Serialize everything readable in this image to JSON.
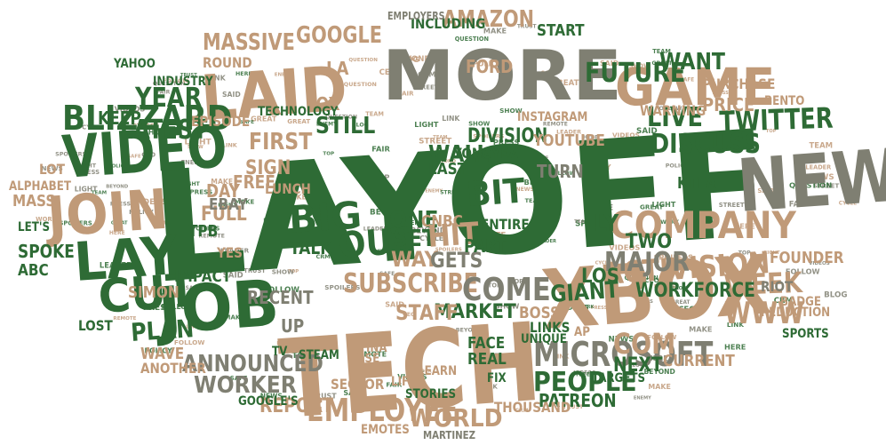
{
  "colors": {
    "green": "#2e6b35",
    "tan": "#c09a78",
    "gray": "#7f7f72",
    "lightgreen": "#5c8f5a"
  },
  "words": [
    {
      "id": "layoff",
      "text": "LAYOFF",
      "color": "green"
    },
    {
      "id": "tech",
      "text": "TECH",
      "color": "tan"
    },
    {
      "id": "more",
      "text": "MORE",
      "color": "gray"
    },
    {
      "id": "xbox",
      "text": "XBOX",
      "color": "tan"
    },
    {
      "id": "laid",
      "text": "LAID",
      "color": "tan"
    },
    {
      "id": "job",
      "text": "JOB",
      "color": "green"
    },
    {
      "id": "game",
      "text": "GAME",
      "color": "tan"
    },
    {
      "id": "new",
      "text": "NEW",
      "color": "gray"
    },
    {
      "id": "video",
      "text": "VIDEO",
      "color": "green"
    },
    {
      "id": "join",
      "text": "JOIN",
      "color": "tan"
    },
    {
      "id": "lay",
      "text": "LAY",
      "color": "green"
    },
    {
      "id": "cut",
      "text": "CUT",
      "color": "green"
    },
    {
      "id": "company",
      "text": "COMPANY",
      "color": "tan"
    },
    {
      "id": "microsoft",
      "text": "MICROSOFT",
      "color": "gray"
    },
    {
      "id": "blizzard",
      "text": "BLIZZARD",
      "color": "green"
    },
    {
      "id": "big",
      "text": "BIG",
      "color": "green"
    },
    {
      "id": "activision",
      "text": "ACTIVISION",
      "color": "tan"
    },
    {
      "id": "employee",
      "text": "EMPLOYEE",
      "color": "tan"
    },
    {
      "id": "subscribe",
      "text": "SUBSCRIBE",
      "color": "tan"
    },
    {
      "id": "announced",
      "text": "ANNOUNCED",
      "color": "gray"
    },
    {
      "id": "worker",
      "text": "WORKER",
      "color": "gray"
    },
    {
      "id": "future",
      "text": "FUTURE",
      "color": "green"
    },
    {
      "id": "twitter",
      "text": "TWITTER",
      "color": "green"
    },
    {
      "id": "discuss",
      "text": "DISCUSS",
      "color": "green"
    },
    {
      "id": "google",
      "text": "GOOGLE",
      "color": "tan"
    },
    {
      "id": "latest",
      "text": "LATEST",
      "color": "green"
    },
    {
      "id": "massive",
      "text": "MASSIVE",
      "color": "tan"
    },
    {
      "id": "amazon",
      "text": "AMAZON",
      "color": "tan"
    },
    {
      "id": "www",
      "text": "WWW",
      "color": "tan"
    },
    {
      "id": "week",
      "text": "WEEK",
      "color": "tan"
    },
    {
      "id": "people",
      "text": "PEOPLE",
      "color": "green"
    },
    {
      "id": "world",
      "text": "WORLD",
      "color": "tan"
    },
    {
      "id": "come",
      "text": "COME",
      "color": "gray"
    },
    {
      "id": "out",
      "text": "OUT",
      "color": "green"
    },
    {
      "id": "bit",
      "text": "BIT",
      "color": "green"
    },
    {
      "id": "major",
      "text": "MAJOR",
      "color": "gray"
    },
    {
      "id": "live",
      "text": "LIVE",
      "color": "green"
    },
    {
      "id": "year",
      "text": "YEAR",
      "color": "green"
    },
    {
      "id": "keep",
      "text": "KEEP",
      "color": "green"
    },
    {
      "id": "still",
      "text": "STILL",
      "color": "green"
    },
    {
      "id": "fox",
      "text": "FOX",
      "color": "tan"
    },
    {
      "id": "first",
      "text": "FIRST",
      "color": "tan"
    },
    {
      "id": "plan",
      "text": "PLAN",
      "color": "green"
    },
    {
      "id": "set",
      "text": "SET",
      "color": "green"
    },
    {
      "id": "one",
      "text": "ONE",
      "color": "green"
    },
    {
      "id": "way",
      "text": "WAY",
      "color": "tan"
    },
    {
      "id": "wall",
      "text": "WALL",
      "color": "green"
    },
    {
      "id": "last",
      "text": "LAST",
      "color": "green"
    },
    {
      "id": "hit",
      "text": "HIT",
      "color": "tan"
    },
    {
      "id": "gets",
      "text": "GETS",
      "color": "gray"
    },
    {
      "id": "market",
      "text": "MARKET",
      "color": "green"
    },
    {
      "id": "staff",
      "text": "STAFF",
      "color": "tan"
    },
    {
      "id": "giant",
      "text": "GIANT",
      "color": "green"
    },
    {
      "id": "com",
      "text": "COM",
      "color": "tan"
    },
    {
      "id": "two",
      "text": "TWO",
      "color": "green"
    },
    {
      "id": "los",
      "text": "LOS",
      "color": "green"
    },
    {
      "id": "ly",
      "text": "LY",
      "color": "green"
    },
    {
      "id": "workforce",
      "text": "WORKFORCE",
      "color": "green"
    },
    {
      "id": "report",
      "text": "REPORT",
      "color": "tan"
    },
    {
      "id": "patreon",
      "text": "PATREON",
      "color": "green"
    },
    {
      "id": "recent",
      "text": "RECENT",
      "color": "gray"
    },
    {
      "id": "sign",
      "text": "SIGN",
      "color": "tan"
    },
    {
      "id": "free",
      "text": "FREE",
      "color": "tan"
    },
    {
      "id": "full",
      "text": "FULL",
      "color": "tan"
    },
    {
      "id": "day",
      "text": "DAY",
      "color": "tan"
    },
    {
      "id": "ebay",
      "text": "EBAY",
      "color": "gray"
    },
    {
      "id": "division",
      "text": "DIVISION",
      "color": "green"
    },
    {
      "id": "youtube",
      "text": "YOUTUBE",
      "color": "tan"
    },
    {
      "id": "industry",
      "text": "INDUSTRY",
      "color": "green"
    },
    {
      "id": "yongyea",
      "text": "YONGYEA",
      "color": "green"
    },
    {
      "id": "la",
      "text": "LA",
      "color": "tan"
    },
    {
      "id": "want",
      "text": "WANT",
      "color": "green"
    },
    {
      "id": "price",
      "text": "PRICE",
      "color": "tan"
    },
    {
      "id": "purchase",
      "text": "PURCHASE",
      "color": "tan"
    },
    {
      "id": "start",
      "text": "START",
      "color": "green"
    },
    {
      "id": "including",
      "text": "INCLUDING",
      "color": "green"
    },
    {
      "id": "employers",
      "text": "EMPLOYERS",
      "color": "gray"
    },
    {
      "id": "technology",
      "text": "TECHNOLOGY",
      "color": "green"
    },
    {
      "id": "entire",
      "text": "ENTIRE",
      "color": "green"
    },
    {
      "id": "cnbc",
      "text": "CNBC",
      "color": "tan"
    },
    {
      "id": "part",
      "text": "PART",
      "color": "green"
    },
    {
      "id": "turn",
      "text": "TURN",
      "color": "gray"
    },
    {
      "id": "boss",
      "text": "BOSS",
      "color": "tan"
    },
    {
      "id": "links",
      "text": "LINKS",
      "color": "green"
    },
    {
      "id": "next",
      "text": "NEXT",
      "color": "green"
    },
    {
      "id": "current",
      "text": "CURRENT",
      "color": "tan"
    },
    {
      "id": "alphabet",
      "text": "ALPHABET",
      "color": "tan"
    },
    {
      "id": "ktla",
      "text": "KTLA",
      "color": "green"
    },
    {
      "id": "instagram",
      "text": "INSTAGRAM",
      "color": "tan"
    },
    {
      "id": "warning",
      "text": "WARNING",
      "color": "tan"
    },
    {
      "id": "abc",
      "text": "ABC",
      "color": "green"
    },
    {
      "id": "mass",
      "text": "MASS",
      "color": "tan"
    },
    {
      "id": "spoke",
      "text": "SPOKE",
      "color": "green"
    },
    {
      "id": "lost",
      "text": "LOST",
      "color": "green"
    },
    {
      "id": "simon",
      "text": "SIMON",
      "color": "tan"
    },
    {
      "id": "impact",
      "text": "IMPACT",
      "color": "green"
    },
    {
      "id": "wave",
      "text": "WAVE",
      "color": "tan"
    },
    {
      "id": "another",
      "text": "ANOTHER",
      "color": "tan"
    },
    {
      "id": "sector",
      "text": "SECTOR",
      "color": "tan"
    },
    {
      "id": "real",
      "text": "REAL",
      "color": "green"
    },
    {
      "id": "face",
      "text": "FACE",
      "color": "green"
    },
    {
      "id": "thousand",
      "text": "THOUSAND",
      "color": "tan"
    },
    {
      "id": "stories",
      "text": "STORIES",
      "color": "green"
    },
    {
      "id": "talk",
      "text": "TALK",
      "color": "green"
    },
    {
      "id": "founder",
      "text": "FOUNDER",
      "color": "tan"
    },
    {
      "id": "reduction",
      "text": "REDUCTION",
      "color": "tan"
    },
    {
      "id": "sports",
      "text": "SPORTS",
      "color": "green"
    },
    {
      "id": "riot",
      "text": "RIOT",
      "color": "gray"
    },
    {
      "id": "badge",
      "text": "BADGE",
      "color": "tan"
    },
    {
      "id": "ford",
      "text": "FORD",
      "color": "tan"
    },
    {
      "id": "yahoo",
      "text": "YAHOO",
      "color": "green"
    },
    {
      "id": "round",
      "text": "ROUND",
      "color": "tan"
    },
    {
      "id": "episode",
      "text": "EPISODE",
      "color": "tan"
    },
    {
      "id": "lunch",
      "text": "LUNCH",
      "color": "tan"
    },
    {
      "id": "tpb",
      "text": "TPB",
      "color": "green"
    },
    {
      "id": "yes",
      "text": "YES",
      "color": "tan"
    },
    {
      "id": "up",
      "text": "UP",
      "color": "gray"
    },
    {
      "id": "ana",
      "text": "ANÃ",
      "color": "tan"
    },
    {
      "id": "tv",
      "text": "TV",
      "color": "green"
    },
    {
      "id": "steam",
      "text": "STEAM",
      "color": "green"
    },
    {
      "id": "jose",
      "text": "JOSE",
      "color": "tan"
    },
    {
      "id": "ina",
      "text": "INÃ",
      "color": "tan"
    },
    {
      "id": "lifea",
      "text": "LIFEÃ",
      "color": "tan"
    },
    {
      "id": "googles",
      "text": "GOOGLE'S",
      "color": "green"
    },
    {
      "id": "emotes",
      "text": "EMOTES",
      "color": "tan"
    },
    {
      "id": "martinez",
      "text": "MARTINEZ",
      "color": "gray"
    },
    {
      "id": "targets",
      "text": "TARGETS",
      "color": "green"
    },
    {
      "id": "unique",
      "text": "UNIQUE",
      "color": "green"
    },
    {
      "id": "learn",
      "text": "LEARN",
      "color": "tan"
    },
    {
      "id": "fix",
      "text": "FIX",
      "color": "green"
    },
    {
      "id": "lot",
      "text": "LOT",
      "color": "tan"
    },
    {
      "id": "lets",
      "text": "LET'S",
      "color": "green"
    },
    {
      "id": "bento",
      "text": "BENTO",
      "color": "tan"
    },
    {
      "id": "ap",
      "text": "AP",
      "color": "tan"
    }
  ]
}
